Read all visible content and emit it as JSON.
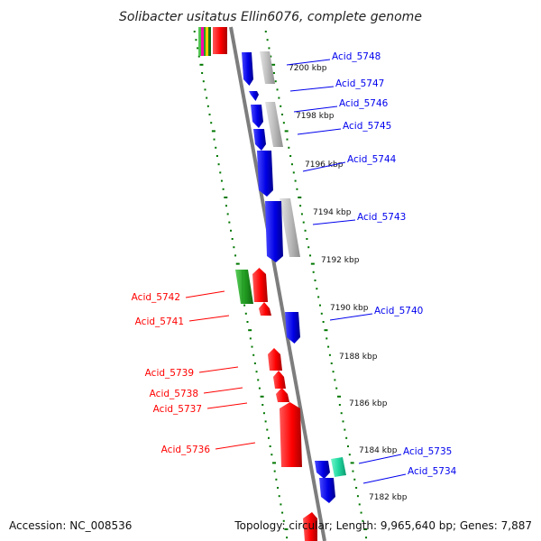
{
  "title": "Solibacter usitatus Ellin6076, complete genome",
  "accession": "Accession: NC_008536",
  "topology": "Topology: circular; Length: 9,965,640 bp; Genes: 7,887",
  "colors": {
    "forward": "#0000ee",
    "reverse": "#ff0000",
    "gray": "#b8b8b8",
    "green": "#2ea82e",
    "teal": "#20d8a0",
    "backbone": "#808080",
    "tick": "#007700"
  },
  "ticks": [
    {
      "label": "7200 kbp"
    },
    {
      "label": "7198 kbp"
    },
    {
      "label": "7196 kbp"
    },
    {
      "label": "7194 kbp"
    },
    {
      "label": "7192 kbp"
    },
    {
      "label": "7190 kbp"
    },
    {
      "label": "7188 kbp"
    },
    {
      "label": "7186 kbp"
    },
    {
      "label": "7184 kbp"
    },
    {
      "label": "7182 kbp"
    }
  ],
  "genes": [
    {
      "label": "Acid_5748",
      "strand": "forward"
    },
    {
      "label": "Acid_5747",
      "strand": "forward"
    },
    {
      "label": "Acid_5746",
      "strand": "forward"
    },
    {
      "label": "Acid_5745",
      "strand": "forward"
    },
    {
      "label": "Acid_5744",
      "strand": "forward"
    },
    {
      "label": "Acid_5743",
      "strand": "forward"
    },
    {
      "label": "Acid_5742",
      "strand": "reverse"
    },
    {
      "label": "Acid_5741",
      "strand": "reverse"
    },
    {
      "label": "Acid_5740",
      "strand": "forward"
    },
    {
      "label": "Acid_5739",
      "strand": "reverse"
    },
    {
      "label": "Acid_5738",
      "strand": "reverse"
    },
    {
      "label": "Acid_5737",
      "strand": "reverse"
    },
    {
      "label": "Acid_5736",
      "strand": "reverse"
    },
    {
      "label": "Acid_5735",
      "strand": "forward"
    },
    {
      "label": "Acid_5734",
      "strand": "forward"
    }
  ]
}
